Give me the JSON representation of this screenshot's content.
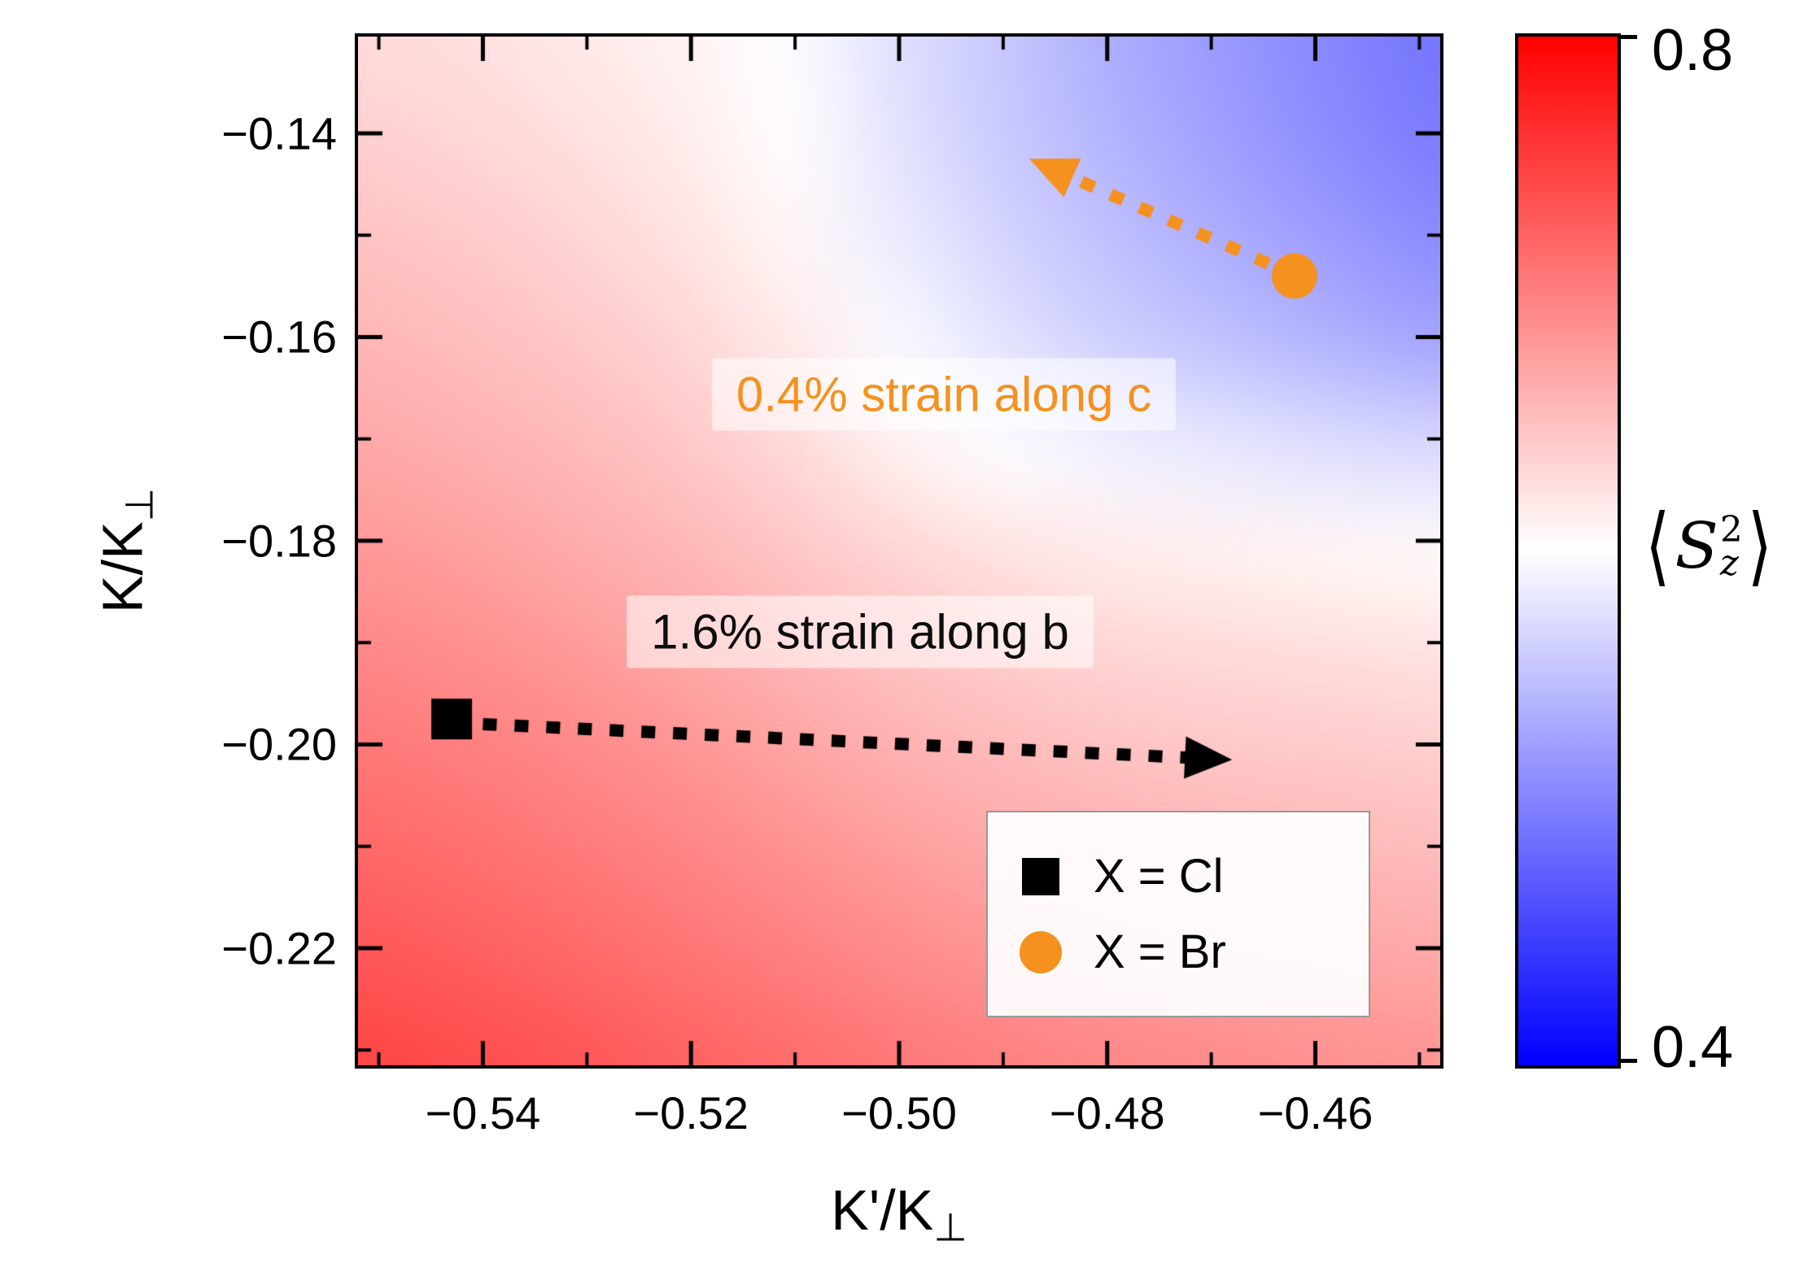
{
  "chart_data": {
    "type": "heatmap",
    "title": "",
    "xlabel": "K'/K⊥",
    "ylabel": "K/K⊥",
    "x_range": [
      -0.552,
      -0.448
    ],
    "y_range": [
      -0.2315,
      -0.1305
    ],
    "x_ticks": [
      -0.54,
      -0.52,
      -0.5,
      -0.48,
      -0.46
    ],
    "y_ticks": [
      -0.14,
      -0.16,
      -0.18,
      -0.2,
      -0.22
    ],
    "x_minor_step": 0.01,
    "y_minor_step": 0.01,
    "grid": "off",
    "legend_position": "lower right",
    "axis_labels": {
      "x_main": "K'/K",
      "x_sub": "⊥",
      "y_main": "K/K",
      "y_sub": "⊥"
    },
    "heatmap": {
      "nx": 11,
      "ny": 11,
      "comment": "values of <Sz^2> on grid, rows top (y=-0.1305) to bottom (y=-0.2315), cols left (x=-0.552) to right (x=-0.448)",
      "values": [
        [
          0.628,
          0.625,
          0.618,
          0.61,
          0.598,
          0.575,
          0.555,
          0.535,
          0.52,
          0.505,
          0.492
        ],
        [
          0.638,
          0.632,
          0.625,
          0.615,
          0.602,
          0.578,
          0.558,
          0.54,
          0.525,
          0.51,
          0.497
        ],
        [
          0.648,
          0.642,
          0.634,
          0.623,
          0.608,
          0.585,
          0.566,
          0.55,
          0.536,
          0.522,
          0.51
        ],
        [
          0.658,
          0.652,
          0.644,
          0.633,
          0.617,
          0.595,
          0.578,
          0.563,
          0.552,
          0.54,
          0.53
        ],
        [
          0.669,
          0.663,
          0.655,
          0.644,
          0.63,
          0.612,
          0.598,
          0.588,
          0.582,
          0.575,
          0.57
        ],
        [
          0.681,
          0.675,
          0.667,
          0.657,
          0.645,
          0.632,
          0.622,
          0.615,
          0.612,
          0.608,
          0.605
        ],
        [
          0.694,
          0.688,
          0.68,
          0.67,
          0.659,
          0.648,
          0.639,
          0.633,
          0.629,
          0.626,
          0.623
        ],
        [
          0.707,
          0.701,
          0.693,
          0.684,
          0.673,
          0.663,
          0.655,
          0.649,
          0.645,
          0.642,
          0.639
        ],
        [
          0.72,
          0.714,
          0.706,
          0.697,
          0.687,
          0.678,
          0.67,
          0.664,
          0.66,
          0.657,
          0.654
        ],
        [
          0.733,
          0.727,
          0.719,
          0.71,
          0.701,
          0.692,
          0.685,
          0.679,
          0.675,
          0.672,
          0.669
        ],
        [
          0.746,
          0.74,
          0.733,
          0.724,
          0.715,
          0.707,
          0.7,
          0.694,
          0.69,
          0.687,
          0.684
        ]
      ]
    },
    "colormap": {
      "low_color": "#0000ff",
      "mid_color": "#ffffff",
      "high_color": "#ff0000",
      "mid_value": 0.6
    },
    "colorbar": {
      "min": 0.4,
      "max": 0.8,
      "tick_labels": [
        "0.8",
        "0.4"
      ],
      "label_parts": {
        "open": "⟨",
        "sym": "S",
        "sup": "2",
        "sub": "z",
        "close": "⟩"
      }
    },
    "points": [
      {
        "name": "X = Cl",
        "marker": "square",
        "color": "#000000",
        "x": -0.543,
        "y": -0.1975
      },
      {
        "name": "X = Br",
        "marker": "circle",
        "color": "#F5911E",
        "x": -0.462,
        "y": -0.154
      }
    ],
    "arrows": [
      {
        "label": "1.6% strain along b",
        "color": "#000000",
        "style": "dotted",
        "from": [
          -0.54,
          -0.198
        ],
        "to": [
          -0.468,
          -0.2015
        ]
      },
      {
        "label": "0.4% strain along c",
        "color": "#F5911E",
        "style": "dotted",
        "from": [
          -0.4645,
          -0.1528
        ],
        "to": [
          -0.4875,
          -0.1425
        ]
      }
    ]
  }
}
